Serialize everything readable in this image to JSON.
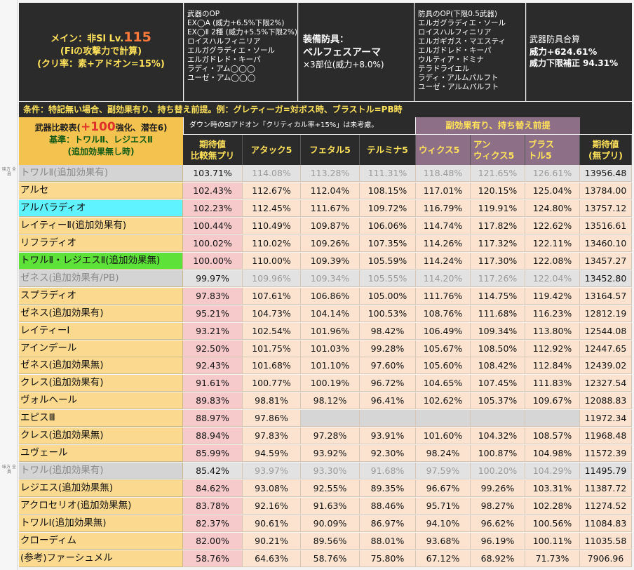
{
  "header": {
    "main_line1": "メイン：非Sl Lv.",
    "main_level": "115",
    "main_line2": "(Fiの攻撃力で計算)",
    "main_line3": "(クリ率：素+アドオン=15%)",
    "weapon_op_title": "武器のOP",
    "weapon_op_lines": [
      "EX◯A (威力+6.5%下限2%)",
      "EX◯Ⅱ 2種 (威力+5.5%下限2%)",
      "ロイスハルフィニリア",
      "エルガグラディエ・ソール",
      "エルガドレド・キーパ",
      "ラディ・アム◯◯◯",
      "ユーゼ・アム◯◯◯"
    ],
    "armor_label": "装備防具：",
    "armor_name": "ベルフェスアーマ",
    "armor_note": "×3部位(威力+8.0%)",
    "armor_op_title": "防具のOP(下限0.5武器)",
    "armor_op_lines": [
      "エルガグラディエ・ソール",
      "ロイスハルフィニリア",
      "エルガギガス・マエスティ",
      "エルガドレド・キーパ",
      "ウルティア・ドミナ",
      "テラドライエル",
      "ラディ・アルムパルフト",
      "ユーゼ・アルムパルフト"
    ],
    "total_title": "武器防具合算",
    "total_power": "威力+624.61%",
    "total_floor": "威力下限補正 94.31%"
  },
  "condition": "条件：特記無い場合、副効果有り、持ち替え前提。例：グレティーガ=対ボス時、ブラストル=PB時",
  "table_title": {
    "line1_a": "武器比較表(",
    "line1_b": "+100",
    "line1_c": "強化、潜在6)",
    "line2": "基準：トワルⅡ、レジエスⅡ",
    "line3": "(追加効果無し時)"
  },
  "sub_header_note": "ダウン時のSIアドオン「クリティカル率+15%」は未考慮。",
  "sub_header_mauve": "副効果有り、持ち替え前提",
  "columns": [
    "期待値\n比較無プリ",
    "アタック5",
    "フェタル5",
    "テルミナ5",
    "ウィクス5",
    "アン\nウィクス5",
    "ブラス\nトル5",
    "期待値\n(無プリ)"
  ],
  "side_note": "味方\n全員",
  "rows": [
    {
      "name": "トワルⅡ(追加効果有)",
      "style": "gray",
      "side": true,
      "vals": [
        "103.71%",
        "114.08%",
        "113.28%",
        "111.31%",
        "118.48%",
        "121.65%",
        "126.61%",
        "13956.48"
      ]
    },
    {
      "name": "アルセ",
      "style": "",
      "vals": [
        "102.43%",
        "112.67%",
        "112.04%",
        "108.15%",
        "117.01%",
        "120.15%",
        "125.04%",
        "13784.00"
      ]
    },
    {
      "name": "アルバラディオ",
      "style": "cyan",
      "vals": [
        "102.23%",
        "112.45%",
        "111.67%",
        "109.72%",
        "116.79%",
        "119.91%",
        "124.80%",
        "13757.12"
      ]
    },
    {
      "name": "レイティーⅡ(追加効果有)",
      "style": "",
      "vals": [
        "100.44%",
        "110.49%",
        "109.87%",
        "106.06%",
        "114.74%",
        "117.82%",
        "122.62%",
        "13516.61"
      ]
    },
    {
      "name": "リフラディオ",
      "style": "",
      "vals": [
        "100.02%",
        "110.02%",
        "109.26%",
        "107.35%",
        "114.26%",
        "117.32%",
        "122.11%",
        "13460.10"
      ]
    },
    {
      "name": "トワルⅡ・レジエスⅡ(追加効果無)",
      "style": "green",
      "vals": [
        "100.00%",
        "110.00%",
        "109.39%",
        "105.59%",
        "114.24%",
        "117.30%",
        "122.08%",
        "13457.27"
      ]
    },
    {
      "name": "ゼネス(追加効果有/PB)",
      "style": "gray",
      "vals": [
        "99.97%",
        "109.96%",
        "109.34%",
        "105.55%",
        "114.20%",
        "117.26%",
        "122.04%",
        "13452.80"
      ]
    },
    {
      "name": "スプラディオ",
      "style": "",
      "vals": [
        "97.83%",
        "107.61%",
        "106.86%",
        "105.00%",
        "111.76%",
        "114.75%",
        "119.42%",
        "13164.57"
      ]
    },
    {
      "name": "ゼネス(追加効果有)",
      "style": "",
      "vals": [
        "95.21%",
        "104.73%",
        "104.14%",
        "100.53%",
        "108.76%",
        "111.68%",
        "116.23%",
        "12812.19"
      ]
    },
    {
      "name": "レイティーⅠ",
      "style": "",
      "vals": [
        "93.21%",
        "102.54%",
        "101.96%",
        "98.42%",
        "106.49%",
        "109.34%",
        "113.80%",
        "12544.08"
      ]
    },
    {
      "name": "アインデール",
      "style": "",
      "vals": [
        "92.50%",
        "101.75%",
        "101.03%",
        "99.28%",
        "105.67%",
        "108.50%",
        "112.92%",
        "12447.65"
      ]
    },
    {
      "name": "ゼネス(追加効果無)",
      "style": "",
      "vals": [
        "92.43%",
        "101.68%",
        "101.10%",
        "97.60%",
        "105.60%",
        "108.42%",
        "112.84%",
        "12439.02"
      ]
    },
    {
      "name": "クレス(追加効果有)",
      "style": "",
      "vals": [
        "91.61%",
        "100.77%",
        "100.19%",
        "96.72%",
        "104.65%",
        "107.45%",
        "111.83%",
        "12327.54"
      ]
    },
    {
      "name": "ヴォルヘール",
      "style": "",
      "vals": [
        "89.83%",
        "98.81%",
        "98.12%",
        "96.41%",
        "102.62%",
        "105.37%",
        "109.67%",
        "12088.83"
      ]
    },
    {
      "name": "エピスⅢ",
      "style": "",
      "vals": [
        "88.97%",
        "97.86%",
        "",
        "",
        "",
        "",
        "",
        "11972.34"
      ]
    },
    {
      "name": "クレス(追加効果無)",
      "style": "",
      "vals": [
        "88.94%",
        "97.83%",
        "97.28%",
        "93.91%",
        "101.60%",
        "104.32%",
        "108.57%",
        "11968.48"
      ]
    },
    {
      "name": "ユヴェール",
      "style": "",
      "vals": [
        "85.99%",
        "94.59%",
        "93.92%",
        "92.30%",
        "98.24%",
        "100.87%",
        "104.98%",
        "11572.39"
      ]
    },
    {
      "name": "トワル(追加効果有)",
      "style": "gray",
      "side": true,
      "vals": [
        "85.42%",
        "93.97%",
        "93.30%",
        "91.68%",
        "97.59%",
        "100.20%",
        "104.29%",
        "11495.79"
      ]
    },
    {
      "name": "レジエス(追加効果無)",
      "style": "",
      "vals": [
        "84.62%",
        "93.08%",
        "92.55%",
        "89.35%",
        "96.67%",
        "99.26%",
        "103.31%",
        "11387.72"
      ]
    },
    {
      "name": "アクロセリオ(追加効果無)",
      "style": "",
      "vals": [
        "83.78%",
        "92.16%",
        "91.63%",
        "88.46%",
        "95.71%",
        "98.27%",
        "102.28%",
        "11274.52"
      ]
    },
    {
      "name": "トワルⅠ(追加効果無)",
      "style": "",
      "vals": [
        "82.37%",
        "90.61%",
        "90.09%",
        "86.97%",
        "94.10%",
        "96.62%",
        "100.56%",
        "11084.83"
      ]
    },
    {
      "name": "クローディム",
      "style": "",
      "vals": [
        "82.00%",
        "90.21%",
        "89.56%",
        "88.01%",
        "93.68%",
        "96.19%",
        "100.11%",
        "11035.58"
      ]
    },
    {
      "name": "(参考)ファーシュメル",
      "style": "",
      "vals": [
        "58.76%",
        "64.63%",
        "58.76%",
        "75.80%",
        "67.12%",
        "68.92%",
        "71.73%",
        "7906.96"
      ]
    }
  ]
}
